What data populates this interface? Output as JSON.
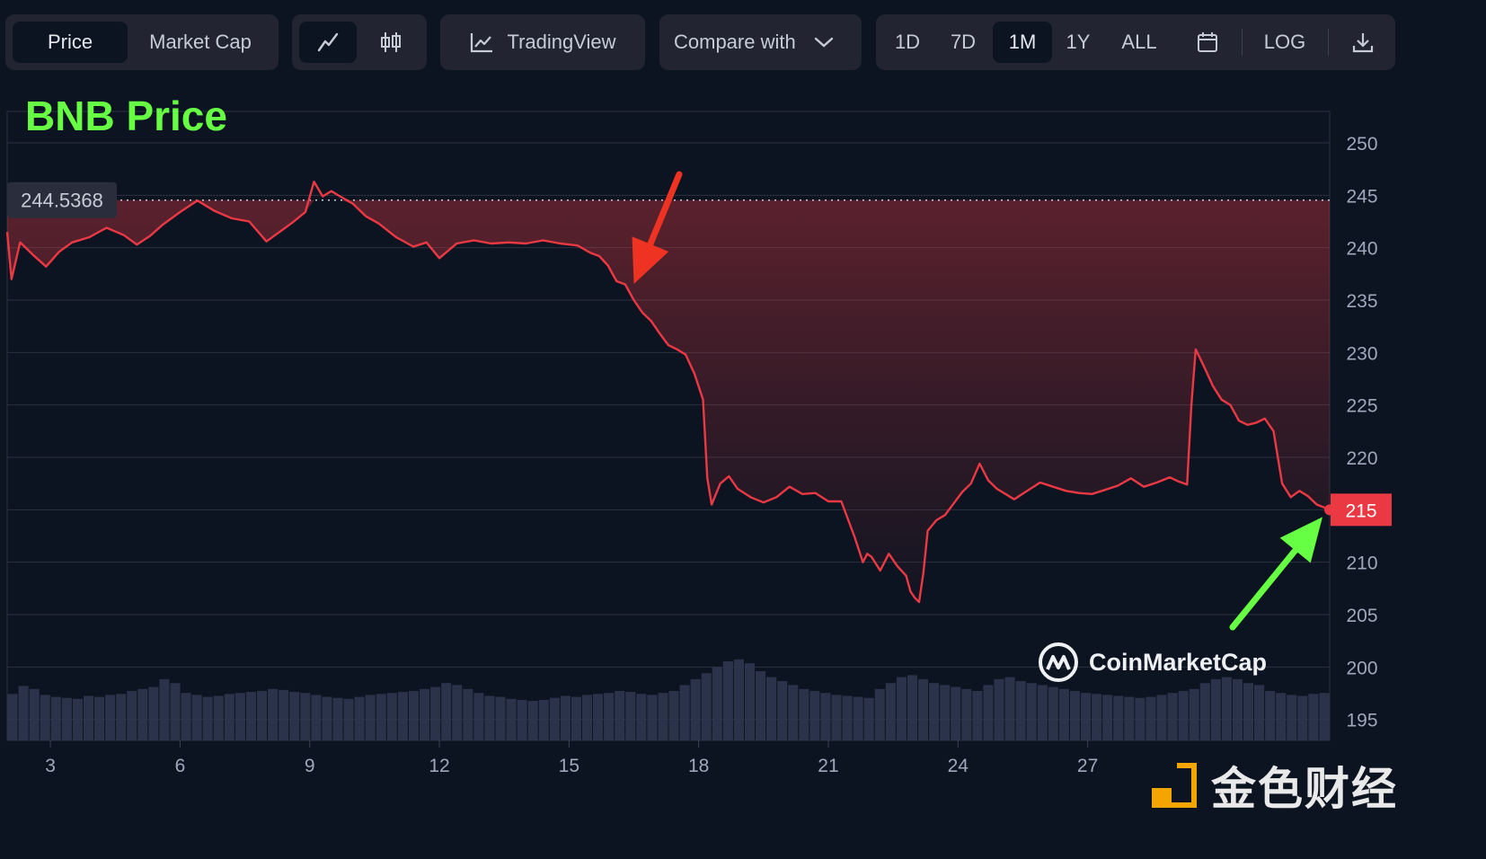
{
  "toolbar": {
    "metric_tabs": [
      "Price",
      "Market Cap"
    ],
    "active_metric": "Price",
    "tradingview_label": "TradingView",
    "compare_label": "Compare with",
    "ranges": [
      "1D",
      "7D",
      "1M",
      "1Y",
      "ALL"
    ],
    "active_range": "1M",
    "log_label": "LOG",
    "icons": [
      "line-chart-icon",
      "candlestick-icon",
      "tradingview-icon",
      "chevron-down-icon",
      "calendar-icon",
      "download-icon"
    ]
  },
  "overlay": {
    "title": "BNB Price",
    "brand": "CoinMarketCap",
    "watermark_text": "金色财经"
  },
  "colors": {
    "background": "#0d1421",
    "line": "#ea3943",
    "line_up": "#16c784",
    "title": "#66ff44",
    "down_arrow": "#ee3322",
    "up_arrow": "#66ff44",
    "volume": "#2f3650"
  },
  "chart_data": {
    "type": "line",
    "title": "BNB Price",
    "xlabel": "",
    "ylabel": "",
    "x_ticks": [
      "3",
      "6",
      "9",
      "12",
      "15",
      "18",
      "21",
      "24",
      "27"
    ],
    "y_ticks": [
      195,
      200,
      205,
      210,
      215,
      220,
      225,
      230,
      235,
      240,
      245,
      250
    ],
    "ylim": [
      193,
      253
    ],
    "xlim": [
      2.0,
      32.6
    ],
    "baseline_value": 244.5368,
    "baseline_label": "244.5368",
    "current_value": 215,
    "current_label": "215",
    "grid": true,
    "series": [
      {
        "x": [
          2.0,
          2.1,
          2.3,
          2.6,
          2.9,
          3.2,
          3.5,
          3.9,
          4.3,
          4.7,
          5.0,
          5.3,
          5.6,
          6.0,
          6.4,
          6.8,
          7.2,
          7.6,
          8.0,
          8.3,
          8.6,
          8.9,
          9.1,
          9.3,
          9.5,
          9.7,
          10.0,
          10.3,
          10.6,
          11.0,
          11.4,
          11.7,
          12.0,
          12.4,
          12.8,
          13.2,
          13.6,
          14.0,
          14.4,
          14.8,
          15.2,
          15.5,
          15.7,
          15.9,
          16.1,
          16.3,
          16.5,
          16.7,
          16.9,
          17.1,
          17.3,
          17.5,
          17.7,
          17.9,
          18.1,
          18.2,
          18.3,
          18.4,
          18.5,
          18.7,
          18.9,
          19.2,
          19.5,
          19.8,
          20.1,
          20.4,
          20.7,
          21.0,
          21.3,
          21.6,
          21.8,
          21.9,
          22.0,
          22.2,
          22.4,
          22.6,
          22.8,
          22.9,
          23.0,
          23.1,
          23.2,
          23.3,
          23.5,
          23.7,
          23.9,
          24.1,
          24.3,
          24.5,
          24.7,
          24.9,
          25.1,
          25.3,
          25.6,
          25.9,
          26.2,
          26.5,
          26.8,
          27.1,
          27.4,
          27.7,
          28.0,
          28.3,
          28.6,
          28.9,
          29.1,
          29.3,
          29.4,
          29.5,
          29.7,
          29.9,
          30.1,
          30.3,
          30.5,
          30.7,
          30.9,
          31.1,
          31.3,
          31.5,
          31.7,
          31.9,
          32.1,
          32.3,
          32.6
        ],
        "y": [
          241.5,
          237.0,
          240.5,
          239.3,
          238.2,
          239.6,
          240.5,
          241.0,
          241.9,
          241.2,
          240.3,
          241.1,
          242.2,
          243.4,
          244.5,
          243.5,
          242.8,
          242.5,
          240.6,
          241.5,
          242.4,
          243.4,
          246.3,
          244.9,
          245.4,
          244.9,
          244.2,
          243.0,
          242.3,
          241.0,
          240.1,
          240.5,
          239.0,
          240.4,
          240.7,
          240.4,
          240.5,
          240.4,
          240.7,
          240.4,
          240.2,
          239.5,
          239.2,
          238.3,
          236.8,
          236.5,
          235.0,
          233.8,
          233.0,
          231.8,
          230.7,
          230.3,
          229.8,
          228.0,
          225.5,
          218.0,
          215.5,
          216.5,
          217.5,
          218.2,
          217.0,
          216.2,
          215.7,
          216.2,
          217.2,
          216.5,
          216.6,
          215.8,
          215.8,
          212.5,
          210.0,
          210.8,
          210.5,
          209.2,
          210.8,
          209.6,
          208.7,
          207.2,
          206.6,
          206.2,
          209.0,
          213.0,
          214.0,
          214.5,
          215.6,
          216.7,
          217.5,
          219.4,
          217.8,
          217.0,
          216.5,
          216.0,
          216.8,
          217.6,
          217.2,
          216.8,
          216.6,
          216.5,
          216.9,
          217.3,
          218.0,
          217.2,
          217.6,
          218.1,
          217.7,
          217.4,
          225.0,
          230.3,
          228.6,
          226.8,
          225.5,
          225.0,
          223.5,
          223.1,
          223.3,
          223.7,
          222.5,
          217.5,
          216.2,
          216.8,
          216.3,
          215.5,
          215.0
        ]
      }
    ],
    "volume": [
      47,
      55,
      52,
      46,
      44,
      43,
      42,
      45,
      44,
      46,
      47,
      50,
      52,
      54,
      62,
      58,
      48,
      46,
      44,
      45,
      47,
      48,
      49,
      50,
      52,
      51,
      49,
      48,
      46,
      44,
      43,
      42,
      44,
      46,
      47,
      48,
      49,
      50,
      52,
      54,
      58,
      56,
      52,
      48,
      45,
      44,
      42,
      41,
      40,
      41,
      43,
      45,
      44,
      46,
      47,
      48,
      50,
      49,
      47,
      46,
      48,
      50,
      56,
      62,
      68,
      74,
      80,
      82,
      78,
      70,
      64,
      60,
      56,
      52,
      50,
      48,
      46,
      45,
      44,
      43,
      52,
      58,
      64,
      66,
      62,
      58,
      56,
      54,
      52,
      50,
      56,
      62,
      64,
      60,
      58,
      56,
      54,
      52,
      50,
      48,
      47,
      46,
      45,
      44,
      43,
      44,
      46,
      48,
      50,
      52,
      58,
      62,
      64,
      62,
      58,
      56,
      50,
      48,
      46,
      45,
      47,
      48
    ]
  }
}
